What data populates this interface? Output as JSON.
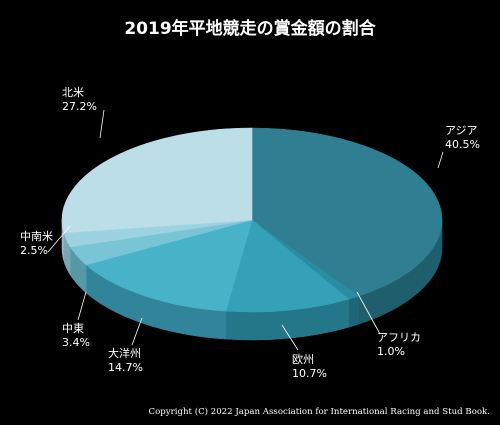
{
  "chart_data": {
    "type": "pie",
    "title": "2019年平地競走の賞金額の割合",
    "slices": [
      {
        "label": "アジア",
        "percent_label": "40.5%",
        "value": 40.5,
        "color": "#2f7e91",
        "side_color": "#1f5e6c"
      },
      {
        "label": "アフリカ",
        "percent_label": "1.0%",
        "value": 1.0,
        "color": "#2a8ca3",
        "side_color": "#1d6677"
      },
      {
        "label": "欧州",
        "percent_label": "10.7%",
        "value": 10.7,
        "color": "#35a1b8",
        "side_color": "#247689"
      },
      {
        "label": "大洋州",
        "percent_label": "14.7%",
        "value": 14.7,
        "color": "#48b2c8",
        "side_color": "#32849a"
      },
      {
        "label": "中東",
        "percent_label": "3.4%",
        "value": 3.4,
        "color": "#79c5d6",
        "side_color": "#5599a8"
      },
      {
        "label": "中南米",
        "percent_label": "2.5%",
        "value": 2.5,
        "color": "#9dd3e0",
        "side_color": "#74a8b5"
      },
      {
        "label": "北米",
        "percent_label": "27.2%",
        "value": 27.2,
        "color": "#bcdee7",
        "side_color": "#8fb3bd"
      }
    ],
    "legend": "none"
  },
  "copyright": "Copyright (C) 2022 Japan Association for International Racing and Stud Book."
}
